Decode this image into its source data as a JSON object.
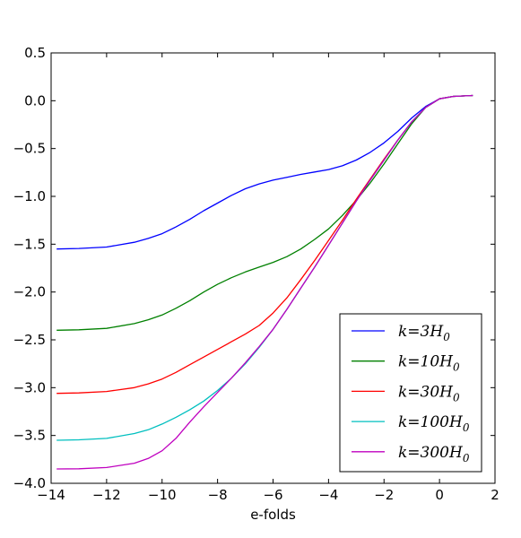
{
  "chart_data": {
    "type": "line",
    "title": "",
    "xlabel": "e-folds",
    "ylabel": "",
    "xlim": [
      -14,
      2
    ],
    "ylim": [
      -4.0,
      0.5
    ],
    "xticks": [
      -14,
      -12,
      -10,
      -8,
      -6,
      -4,
      -2,
      0,
      2
    ],
    "xtick_labels": [
      "−14",
      "−12",
      "−10",
      "−8",
      "−6",
      "−4",
      "−2",
      "0",
      "2"
    ],
    "yticks": [
      0.5,
      0.0,
      -0.5,
      -1.0,
      -1.5,
      -2.0,
      -2.5,
      -3.0,
      -3.5,
      -4.0
    ],
    "ytick_labels": [
      "0.5",
      "0.0",
      "−0.5",
      "−1.0",
      "−1.5",
      "−2.0",
      "−2.5",
      "−3.0",
      "−3.5",
      "−4.0"
    ],
    "grid": false,
    "legend_position": "bottom-right",
    "series": [
      {
        "name": "k=3H₀",
        "label_main": "k=3H",
        "label_sub": "0",
        "color": "#0000ff",
        "x": [
          -13.8,
          -13,
          -12,
          -11,
          -10.5,
          -10,
          -9.5,
          -9,
          -8.5,
          -8,
          -7.5,
          -7,
          -6.5,
          -6,
          -5.5,
          -5,
          -4.5,
          -4,
          -3.5,
          -3,
          -2.5,
          -2,
          -1.5,
          -1,
          -0.5,
          0,
          0.5,
          1.2
        ],
        "y": [
          -1.55,
          -1.545,
          -1.53,
          -1.48,
          -1.44,
          -1.39,
          -1.32,
          -1.24,
          -1.15,
          -1.07,
          -0.99,
          -0.92,
          -0.87,
          -0.83,
          -0.8,
          -0.77,
          -0.745,
          -0.72,
          -0.68,
          -0.62,
          -0.54,
          -0.44,
          -0.32,
          -0.18,
          -0.06,
          0.02,
          0.045,
          0.055
        ]
      },
      {
        "name": "k=10H₀",
        "label_main": "k=10H",
        "label_sub": "0",
        "color": "#008000",
        "x": [
          -13.8,
          -13,
          -12,
          -11,
          -10.5,
          -10,
          -9.5,
          -9,
          -8.5,
          -8,
          -7.5,
          -7,
          -6.5,
          -6,
          -5.5,
          -5,
          -4.5,
          -4,
          -3.5,
          -3,
          -2.5,
          -2,
          -1.5,
          -1,
          -0.5,
          0,
          0.5,
          1.2
        ],
        "y": [
          -2.4,
          -2.395,
          -2.38,
          -2.33,
          -2.29,
          -2.24,
          -2.17,
          -2.09,
          -2.0,
          -1.92,
          -1.85,
          -1.79,
          -1.74,
          -1.69,
          -1.63,
          -1.55,
          -1.45,
          -1.34,
          -1.2,
          -1.04,
          -0.86,
          -0.66,
          -0.45,
          -0.24,
          -0.07,
          0.02,
          0.045,
          0.055
        ]
      },
      {
        "name": "k=30H₀",
        "label_main": "k=30H",
        "label_sub": "0",
        "color": "#ff0000",
        "x": [
          -13.8,
          -13,
          -12,
          -11,
          -10.5,
          -10,
          -9.5,
          -9,
          -8.5,
          -8,
          -7.5,
          -7,
          -6.5,
          -6,
          -5.5,
          -5,
          -4.5,
          -4,
          -3.5,
          -3,
          -2.5,
          -2,
          -1.5,
          -1,
          -0.5,
          0,
          0.5,
          1.2
        ],
        "y": [
          -3.06,
          -3.055,
          -3.04,
          -3.0,
          -2.96,
          -2.91,
          -2.84,
          -2.76,
          -2.68,
          -2.6,
          -2.52,
          -2.44,
          -2.35,
          -2.22,
          -2.06,
          -1.87,
          -1.67,
          -1.46,
          -1.25,
          -1.03,
          -0.82,
          -0.61,
          -0.41,
          -0.22,
          -0.07,
          0.02,
          0.045,
          0.055
        ]
      },
      {
        "name": "k=100H₀",
        "label_main": "k=100H",
        "label_sub": "0",
        "color": "#00bfbf",
        "x": [
          -13.8,
          -13,
          -12,
          -11,
          -10.5,
          -10,
          -9.5,
          -9,
          -8.5,
          -8,
          -7.5,
          -7,
          -6.5,
          -6,
          -5.5,
          -5,
          -4.5,
          -4,
          -3.5,
          -3,
          -2.5,
          -2,
          -1.5,
          -1,
          -0.5,
          0,
          0.5,
          1.2
        ],
        "y": [
          -3.55,
          -3.545,
          -3.53,
          -3.48,
          -3.44,
          -3.38,
          -3.31,
          -3.23,
          -3.14,
          -3.03,
          -2.9,
          -2.75,
          -2.58,
          -2.39,
          -2.18,
          -1.96,
          -1.74,
          -1.51,
          -1.28,
          -1.05,
          -0.83,
          -0.62,
          -0.41,
          -0.22,
          -0.07,
          0.02,
          0.045,
          0.055
        ]
      },
      {
        "name": "k=300H₀",
        "label_main": "k=300H",
        "label_sub": "0",
        "color": "#bf00bf",
        "x": [
          -13.8,
          -13,
          -12,
          -11,
          -10.5,
          -10,
          -9.5,
          -9,
          -8.5,
          -8,
          -7.5,
          -7,
          -6.5,
          -6,
          -5.5,
          -5,
          -4.5,
          -4,
          -3.5,
          -3,
          -2.5,
          -2,
          -1.5,
          -1,
          -0.5,
          0,
          0.5,
          1.2
        ],
        "y": [
          -3.85,
          -3.848,
          -3.835,
          -3.79,
          -3.74,
          -3.66,
          -3.53,
          -3.36,
          -3.2,
          -3.05,
          -2.9,
          -2.74,
          -2.57,
          -2.39,
          -2.18,
          -1.96,
          -1.74,
          -1.51,
          -1.28,
          -1.05,
          -0.83,
          -0.62,
          -0.41,
          -0.22,
          -0.07,
          0.02,
          0.045,
          0.055
        ]
      }
    ]
  }
}
